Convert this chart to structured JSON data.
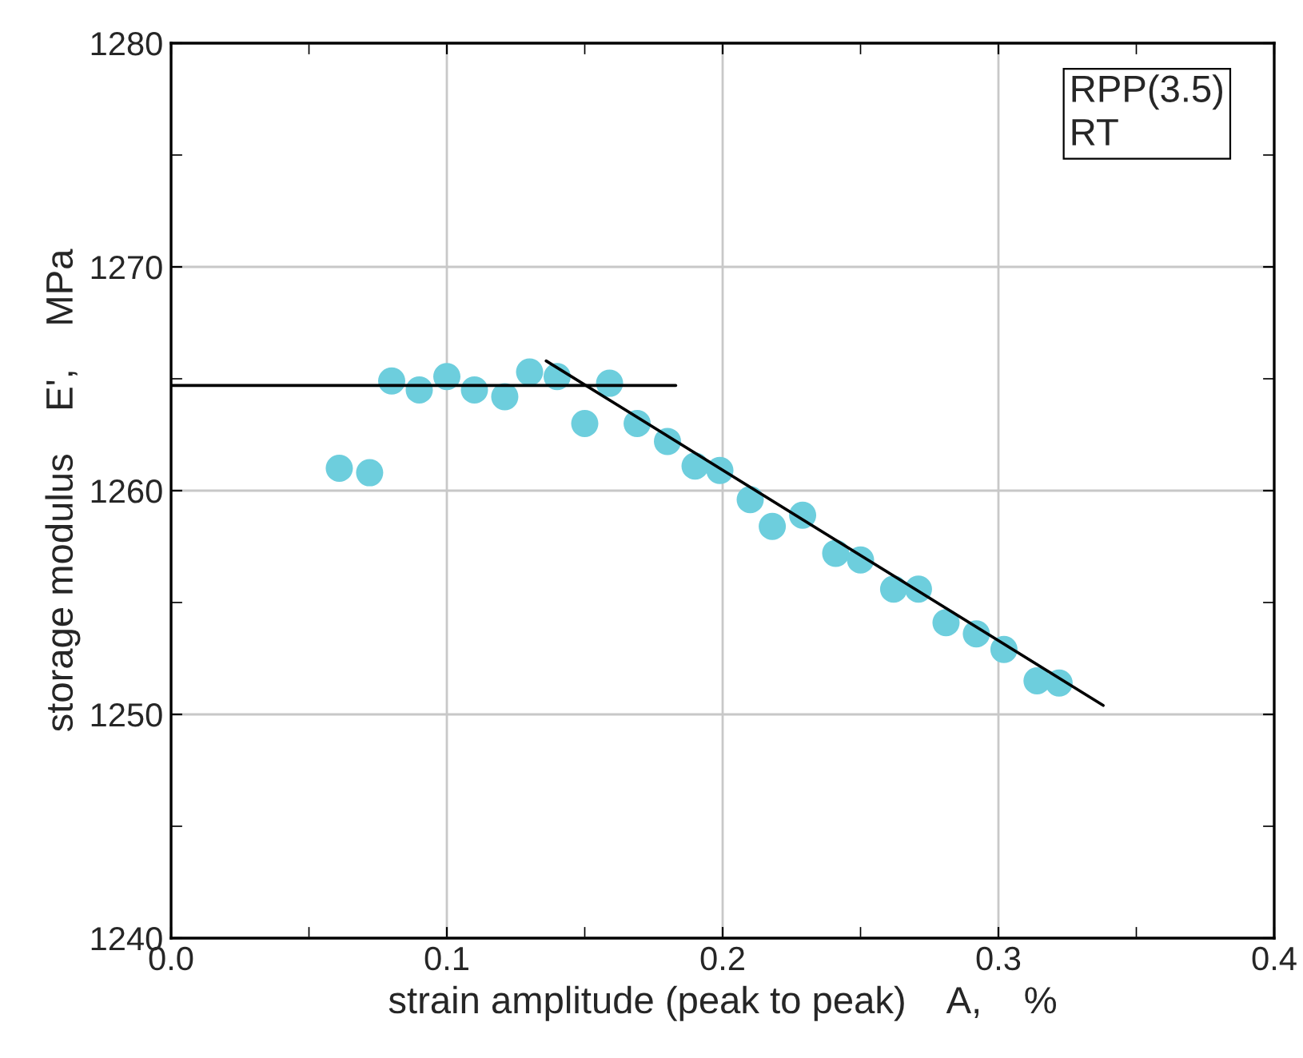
{
  "chart_data": {
    "type": "scatter",
    "xlabel": "strain amplitude (peak to peak)    A,    %",
    "ylabel": "storage modulus    E',    MPa",
    "annotations": [
      "RPP(3.5)\nRT"
    ],
    "xlim": [
      0,
      0.4
    ],
    "ylim": [
      1240,
      1280
    ],
    "xticks": [
      {
        "value": 0,
        "label": "0.0"
      },
      {
        "value": 0.05,
        "label": null
      },
      {
        "value": 0.1,
        "label": "0.1"
      },
      {
        "value": 0.15,
        "label": null
      },
      {
        "value": 0.2,
        "label": "0.2"
      },
      {
        "value": 0.25,
        "label": null
      },
      {
        "value": 0.3,
        "label": "0.3"
      },
      {
        "value": 0.35,
        "label": null
      },
      {
        "value": 0.4,
        "label": "0.4"
      }
    ],
    "yticks": [
      1240,
      {
        "value": 1245,
        "label": null
      },
      1250,
      {
        "value": 1255,
        "label": null
      },
      1260,
      {
        "value": 1265,
        "label": null
      },
      1270,
      {
        "value": 1275,
        "label": null
      },
      1280
    ],
    "grid": true,
    "series": [
      {
        "marker": "circle",
        "color": "#6dcedd",
        "x": [
          0.061,
          0.072,
          0.08,
          0.09,
          0.1,
          0.11,
          0.121,
          0.13,
          0.14,
          0.15,
          0.159,
          0.169,
          0.18,
          0.19,
          0.199,
          0.21,
          0.218,
          0.229,
          0.241,
          0.25,
          0.262,
          0.271,
          0.281,
          0.292,
          0.302,
          0.314,
          0.322
        ],
        "values": [
          1261.0,
          1260.8,
          1264.9,
          1264.5,
          1265.1,
          1264.5,
          1264.2,
          1265.3,
          1265.1,
          1263.0,
          1264.8,
          1263.0,
          1262.2,
          1261.1,
          1260.9,
          1259.6,
          1258.4,
          1258.9,
          1257.2,
          1256.9,
          1255.6,
          1255.6,
          1254.1,
          1253.6,
          1252.9,
          1251.5,
          1251.4
        ]
      },
      {
        "type": "line",
        "marker": "none",
        "color": "#000000",
        "x": [
          0,
          0.183
        ],
        "values": [
          1264.7,
          1264.7
        ]
      },
      {
        "type": "line",
        "marker": "none",
        "color": "#000000",
        "x": [
          0.136,
          0.338
        ],
        "values": [
          1265.8,
          1250.4
        ]
      }
    ]
  }
}
